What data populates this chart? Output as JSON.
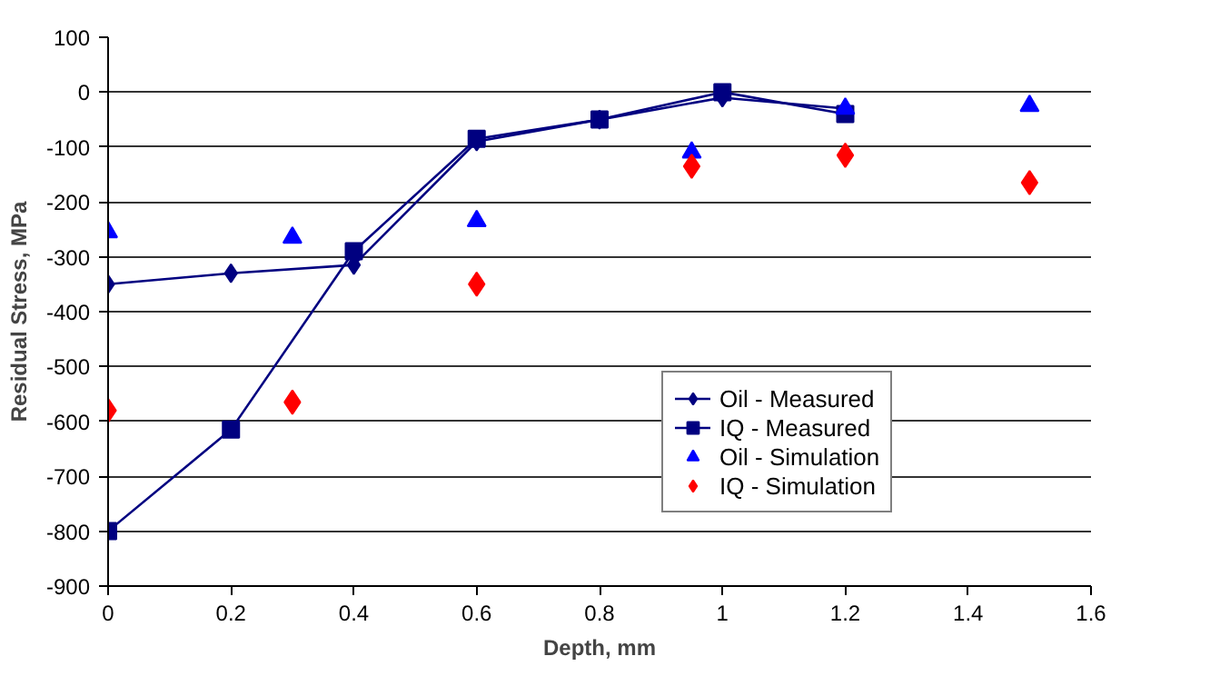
{
  "chart_data": {
    "type": "line",
    "xlabel": "Depth, mm",
    "ylabel": "Residual Stress, MPa",
    "xlim": [
      0,
      1.6
    ],
    "xticks": [
      0,
      0.2,
      0.4,
      0.6,
      0.8,
      1,
      1.2,
      1.4,
      1.6
    ],
    "ylim": [
      -900,
      100
    ],
    "yticks": [
      -900,
      -800,
      -700,
      -600,
      -500,
      -400,
      -300,
      -200,
      -100,
      0,
      100
    ],
    "grid": "y",
    "legend": "right",
    "series": [
      {
        "name": "Oil - Measured",
        "marker": "diamond",
        "color": "#000080",
        "x": [
          0,
          0.2,
          0.4,
          0.6,
          0.8,
          1.0,
          1.2
        ],
        "values": [
          -350,
          -330,
          -315,
          -90,
          -50,
          -10,
          -30
        ]
      },
      {
        "name": "IQ - Measured",
        "marker": "square",
        "color": "#000080",
        "x": [
          0,
          0.2,
          0.4,
          0.6,
          0.8,
          1.0,
          1.2
        ],
        "values": [
          -800,
          -615,
          -290,
          -85,
          -50,
          0,
          -40
        ]
      },
      {
        "name": "Oil - Simulation",
        "type": "scatter",
        "marker": "triangle",
        "color": "#0000ff",
        "x": [
          0,
          0.3,
          0.6,
          0.95,
          1.2,
          1.5
        ],
        "values": [
          -255,
          -265,
          -235,
          -110,
          -30,
          -25
        ]
      },
      {
        "name": "IQ - Simulation",
        "type": "scatter",
        "marker": "diamond",
        "color": "#ff0000",
        "x": [
          0,
          0.3,
          0.6,
          0.95,
          1.2,
          1.5
        ],
        "values": [
          -580,
          -565,
          -350,
          -135,
          -115,
          -165
        ]
      }
    ]
  }
}
